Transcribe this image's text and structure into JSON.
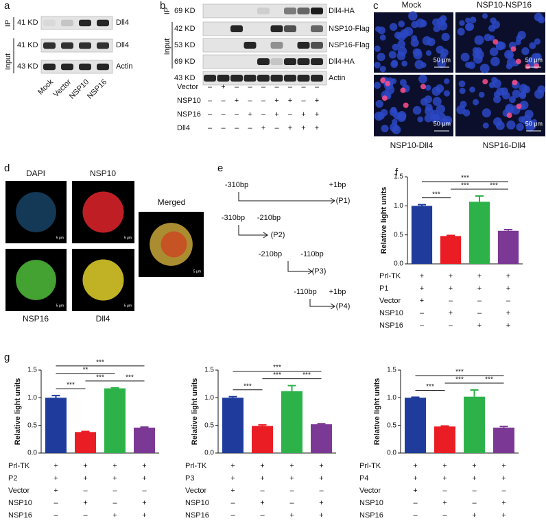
{
  "panel_a": {
    "label": "a",
    "ip_label": "IP",
    "input_label": "Input",
    "rows": [
      {
        "kd": "41 KD",
        "protein": "Dll4"
      },
      {
        "kd": "41 KD",
        "protein": "Dll4"
      },
      {
        "kd": "43 KD",
        "protein": "Actin"
      }
    ],
    "lanes": [
      "Mock",
      "Vector",
      "NSP10",
      "NSP16"
    ]
  },
  "panel_b": {
    "label": "b",
    "ip_label": "IP",
    "input_label": "Input",
    "rows": [
      {
        "kd": "69 KD",
        "protein": "Dll4-HA"
      },
      {
        "kd": "42 KD",
        "protein": "NSP10-Flag"
      },
      {
        "kd": "53 KD",
        "protein": "NSP16-Flag"
      },
      {
        "kd": "69 KD",
        "protein": "Dll4-HA"
      },
      {
        "kd": "43 KD",
        "protein": "Actin"
      }
    ],
    "conditions": [
      {
        "label": "Vector",
        "marks": [
          "–",
          "+",
          "–",
          "–",
          "–",
          "–",
          "–",
          "–",
          "–"
        ]
      },
      {
        "label": "NSP10",
        "marks": [
          "–",
          "–",
          "+",
          "–",
          "–",
          "+",
          "+",
          "–",
          "+"
        ]
      },
      {
        "label": "NSP16",
        "marks": [
          "–",
          "–",
          "–",
          "+",
          "–",
          "+",
          "–",
          "+",
          "+"
        ]
      },
      {
        "label": "Dll4",
        "marks": [
          "–",
          "–",
          "–",
          "–",
          "+",
          "–",
          "+",
          "+",
          "+"
        ]
      }
    ]
  },
  "panel_c": {
    "label": "c",
    "images": [
      {
        "title": "Mock",
        "scale": "50 μm"
      },
      {
        "title": "NSP10-NSP16",
        "scale": "50 μm"
      },
      {
        "title": "NSP10-Dll4",
        "scale": "50 μm"
      },
      {
        "title": "NSP16-Dll4",
        "scale": "50 μm"
      }
    ]
  },
  "panel_d": {
    "label": "d",
    "images": [
      {
        "title": "DAPI",
        "scale": "5 μm"
      },
      {
        "title": "NSP10",
        "scale": "5 μm"
      },
      {
        "title": "NSP16",
        "scale": "5 μm"
      },
      {
        "title": "Dll4",
        "scale": "5 μm"
      },
      {
        "title": "Merged",
        "scale": "5 μm"
      }
    ]
  },
  "panel_e": {
    "label": "e",
    "constructs": [
      {
        "start": "-310bp",
        "end": "+1bp",
        "name": "(P1)"
      },
      {
        "start": "-310bp",
        "end": "-210bp",
        "name": "(P2)"
      },
      {
        "start": "-210bp",
        "end": "-110bp",
        "name": "(P3)"
      },
      {
        "start": "-110bp",
        "end": "+1bp",
        "name": "(P4)"
      }
    ]
  },
  "chart_data": [
    {
      "type": "bar",
      "label": "f",
      "y_label": "Relative light units",
      "values": [
        1.0,
        0.48,
        1.07,
        0.57
      ],
      "errors": [
        0.02,
        0.01,
        0.1,
        0.02
      ],
      "colors": [
        "#1f3c9c",
        "#ea1c24",
        "#2db24a",
        "#7b3895"
      ],
      "ylim": [
        0,
        1.5
      ],
      "yticks": [
        {
          "value": 0,
          "label": "0.0"
        },
        0.5,
        {
          "value": 1,
          "label": "1.0"
        },
        1.5
      ],
      "significance": [
        {
          "between": [
            0,
            1
          ],
          "label": "***"
        },
        {
          "between": [
            1,
            2
          ],
          "label": "***"
        },
        {
          "between": [
            2,
            3
          ],
          "label": "***"
        },
        {
          "between": [
            0,
            3
          ],
          "label": "***"
        }
      ],
      "conditions": [
        {
          "label": "Prl-TK",
          "marks": [
            "+",
            "+",
            "+",
            "+"
          ]
        },
        {
          "label": "P1",
          "marks": [
            "+",
            "+",
            "+",
            "+"
          ]
        },
        {
          "label": "Vector",
          "marks": [
            "+",
            "–",
            "–",
            "–"
          ]
        },
        {
          "label": "NSP10",
          "marks": [
            "–",
            "+",
            "–",
            "+"
          ]
        },
        {
          "label": "NSP16",
          "marks": [
            "–",
            "–",
            "+",
            "+"
          ]
        }
      ]
    },
    {
      "type": "bar",
      "label": "g",
      "y_label": "Relative light units",
      "values": [
        1.0,
        0.38,
        1.17,
        0.46
      ],
      "errors": [
        0.04,
        0.01,
        0.01,
        0.01
      ],
      "colors": [
        "#1f3c9c",
        "#ea1c24",
        "#2db24a",
        "#7b3895"
      ],
      "ylim": [
        0,
        1.5
      ],
      "yticks": [
        {
          "value": 0,
          "label": "0.0"
        },
        0.5,
        {
          "value": 1,
          "label": "1.0"
        },
        1.5
      ],
      "significance": [
        {
          "between": [
            0,
            1
          ],
          "label": "***"
        },
        {
          "between": [
            1,
            2
          ],
          "label": "***"
        },
        {
          "between": [
            2,
            3
          ],
          "label": "***"
        },
        {
          "between": [
            0,
            2
          ],
          "label": "**"
        },
        {
          "between": [
            0,
            3
          ],
          "label": "***"
        }
      ],
      "conditions": [
        {
          "label": "Prl-TK",
          "marks": [
            "+",
            "+",
            "+",
            "+"
          ]
        },
        {
          "label": "P2",
          "marks": [
            "+",
            "+",
            "+",
            "+"
          ]
        },
        {
          "label": "Vector",
          "marks": [
            "+",
            "–",
            "–",
            "–"
          ]
        },
        {
          "label": "NSP10",
          "marks": [
            "–",
            "+",
            "–",
            "+"
          ]
        },
        {
          "label": "NSP16",
          "marks": [
            "–",
            "–",
            "+",
            "+"
          ]
        }
      ]
    },
    {
      "type": "bar",
      "y_label": "Relative light units",
      "values": [
        1.0,
        0.49,
        1.12,
        0.52
      ],
      "errors": [
        0.02,
        0.02,
        0.1,
        0.01
      ],
      "colors": [
        "#1f3c9c",
        "#ea1c24",
        "#2db24a",
        "#7b3895"
      ],
      "ylim": [
        0,
        1.5
      ],
      "yticks": [
        {
          "value": 0,
          "label": "0.0"
        },
        0.5,
        {
          "value": 1,
          "label": "1.0"
        },
        1.5
      ],
      "significance": [
        {
          "between": [
            0,
            1
          ],
          "label": "***"
        },
        {
          "between": [
            1,
            2
          ],
          "label": "***"
        },
        {
          "between": [
            2,
            3
          ],
          "label": "***"
        },
        {
          "between": [
            0,
            3
          ],
          "label": "***"
        }
      ],
      "conditions": [
        {
          "label": "Prl-TK",
          "marks": [
            "+",
            "+",
            "+",
            "+"
          ]
        },
        {
          "label": "P3",
          "marks": [
            "+",
            "+",
            "+",
            "+"
          ]
        },
        {
          "label": "Vector",
          "marks": [
            "+",
            "–",
            "–",
            "–"
          ]
        },
        {
          "label": "NSP10",
          "marks": [
            "–",
            "+",
            "–",
            "+"
          ]
        },
        {
          "label": "NSP16",
          "marks": [
            "–",
            "–",
            "+",
            "+"
          ]
        }
      ]
    },
    {
      "type": "bar",
      "y_label": "Relative light units",
      "values": [
        1.0,
        0.48,
        1.02,
        0.46
      ],
      "errors": [
        0.01,
        0.01,
        0.12,
        0.02
      ],
      "colors": [
        "#1f3c9c",
        "#ea1c24",
        "#2db24a",
        "#7b3895"
      ],
      "ylim": [
        0,
        1.5
      ],
      "yticks": [
        {
          "value": 0,
          "label": "0.0"
        },
        0.5,
        {
          "value": 1,
          "label": "1.0"
        },
        1.5
      ],
      "significance": [
        {
          "between": [
            0,
            1
          ],
          "label": "***"
        },
        {
          "between": [
            1,
            2
          ],
          "label": "***"
        },
        {
          "between": [
            2,
            3
          ],
          "label": "***"
        },
        {
          "between": [
            0,
            3
          ],
          "label": "***"
        }
      ],
      "conditions": [
        {
          "label": "Prl-TK",
          "marks": [
            "+",
            "+",
            "+",
            "+"
          ]
        },
        {
          "label": "P4",
          "marks": [
            "+",
            "+",
            "+",
            "+"
          ]
        },
        {
          "label": "Vector",
          "marks": [
            "+",
            "–",
            "–",
            "–"
          ]
        },
        {
          "label": "NSP10",
          "marks": [
            "–",
            "+",
            "–",
            "+"
          ]
        },
        {
          "label": "NSP16",
          "marks": [
            "–",
            "–",
            "+",
            "+"
          ]
        }
      ]
    }
  ]
}
